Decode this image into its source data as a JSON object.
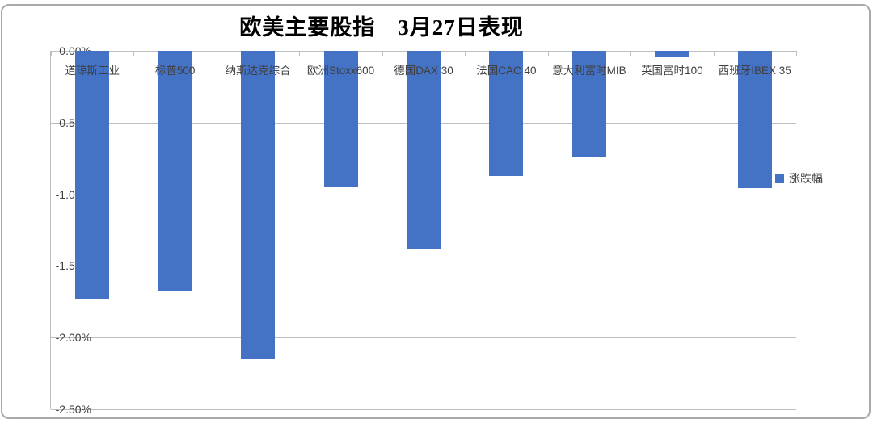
{
  "chart_data": {
    "type": "bar",
    "title": "欧美主要股指　3月27日表现",
    "categories": [
      "道琼斯工业",
      "标普500",
      "纳斯达克综合",
      "欧洲Stoxx600",
      "德国DAX 30",
      "法国CAC 40",
      "意大利富时MIB",
      "英国富时100",
      "西班牙IBEX 35"
    ],
    "series": [
      {
        "name": "涨跌幅",
        "values": [
          -1.73,
          -1.67,
          -2.15,
          -0.95,
          -1.38,
          -0.87,
          -0.74,
          -0.04,
          -0.96
        ]
      }
    ],
    "ylim": [
      -2.5,
      0
    ],
    "yticks": [
      {
        "value": 0,
        "label": "0.00%"
      },
      {
        "value": -0.5,
        "label": "-0.50%"
      },
      {
        "value": -1.0,
        "label": "-1.00%"
      },
      {
        "value": -1.5,
        "label": "-1.50%"
      },
      {
        "value": -2.0,
        "label": "-2.00%"
      },
      {
        "value": -2.5,
        "label": "-2.50%"
      }
    ],
    "grid": true,
    "legend": {
      "label": "涨跌幅",
      "position": "right-middle"
    },
    "colors": {
      "bar": "#4472C4",
      "gridline": "#bfbfbf",
      "axis_text": "#3f3f3f",
      "frame_border": "#a9a9a9"
    }
  }
}
